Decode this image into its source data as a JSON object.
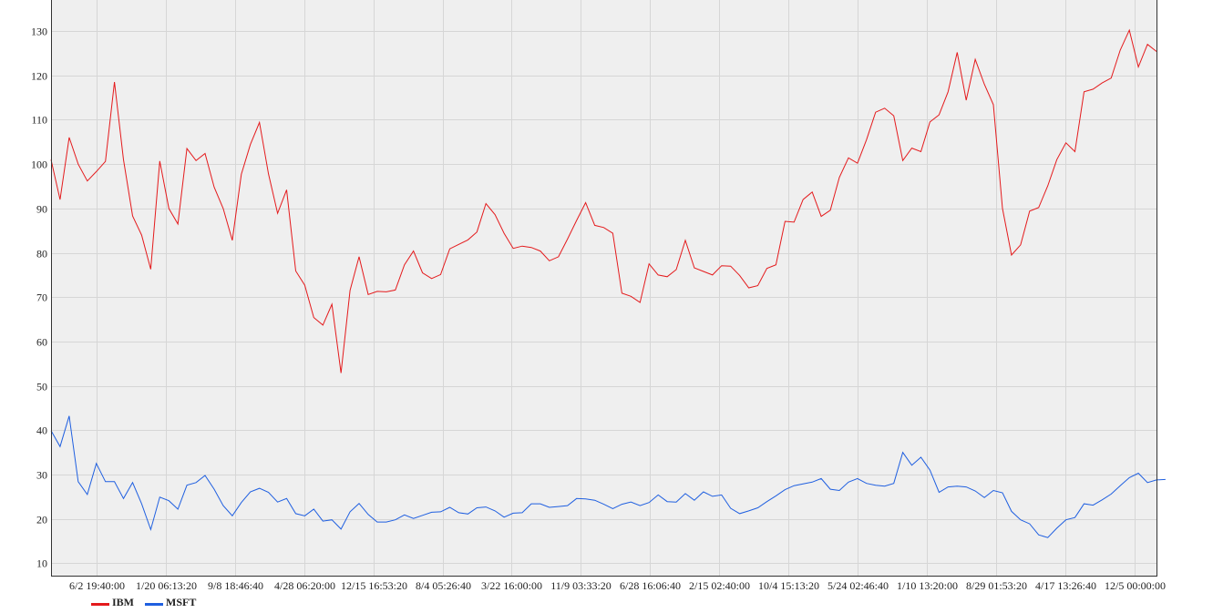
{
  "chart_data": {
    "type": "line",
    "title": "",
    "xlabel": "",
    "ylabel": "",
    "ylim": [
      7,
      137
    ],
    "grid": true,
    "legend_position": "bottom-left",
    "y_ticks": [
      10,
      20,
      30,
      40,
      50,
      60,
      70,
      80,
      90,
      100,
      110,
      120,
      130
    ],
    "x_tick_labels": [
      "6/2 19:40:00",
      "1/20 06:13:20",
      "9/8 18:46:40",
      "4/28 06:20:00",
      "12/15 16:53:20",
      "8/4 05:26:40",
      "3/22 16:00:00",
      "11/9 03:33:20",
      "6/28 16:06:40",
      "2/15 02:40:00",
      "10/4 15:13:20",
      "5/24 02:46:40",
      "1/10 13:20:00",
      "8/29 01:53:20",
      "4/17 13:26:40",
      "12/5 00:00:00"
    ],
    "series": [
      {
        "name": "IBM",
        "color": "#e41a1c",
        "values": [
          101,
          92,
          106,
          100,
          96.2,
          98.3,
          100.6,
          118.5,
          101,
          88.3,
          84,
          76.3,
          100.7,
          90,
          86.5,
          103.5,
          100.8,
          102.4,
          94.8,
          90,
          82.8,
          97.7,
          104.4,
          109.4,
          97.8,
          88.9,
          94.2,
          75.9,
          72.7,
          65.4,
          63.7,
          68.4,
          52.9,
          71.5,
          79.1,
          70.6,
          71.3,
          71.2,
          71.6,
          77.3,
          80.4,
          75.5,
          74.2,
          75.1,
          80.9,
          81.9,
          82.9,
          84.7,
          91.1,
          88.6,
          84.4,
          81,
          81.5,
          81.2,
          80.4,
          78.2,
          79.1,
          83.1,
          87.3,
          91.3,
          86.2,
          85.7,
          84.4,
          70.9,
          70.2,
          68.8,
          77.5,
          75,
          74.6,
          76.2,
          82.8,
          76.6,
          75.8,
          75,
          77.1,
          77,
          74.9,
          72.1,
          72.6,
          76.5,
          77.3,
          87.1,
          86.9,
          92,
          93.7,
          88.2,
          89.6,
          97,
          101.4,
          100.2,
          105.5,
          111.7,
          112.6,
          110.9,
          100.8,
          103.6,
          102.8,
          109.5,
          111.1,
          116.3,
          125.2,
          114.4,
          123.6,
          118,
          113.4,
          90,
          79.5,
          81.8,
          89.4,
          90.2,
          95.1,
          101,
          104.8,
          102.8,
          116.3,
          116.9,
          118.3,
          119.4,
          125.7,
          130.2,
          121.9,
          127,
          125.4
        ]
      },
      {
        "name": "MSFT",
        "color": "#1f5fe0",
        "values": [
          39.9,
          36.3,
          43.2,
          28.4,
          25.5,
          32.5,
          28.4,
          28.4,
          24.6,
          28.2,
          23.4,
          17.6,
          24.9,
          24.1,
          22.2,
          27.6,
          28.2,
          29.8,
          26.7,
          23,
          20.7,
          23.7,
          26.1,
          26.9,
          26,
          23.8,
          24.6,
          21.2,
          20.7,
          22.2,
          19.5,
          19.8,
          17.7,
          21.6,
          23.5,
          21,
          19.3,
          19.3,
          19.8,
          20.9,
          20.1,
          20.8,
          21.5,
          21.6,
          22.6,
          21.4,
          21.1,
          22.5,
          22.7,
          21.8,
          20.4,
          21.3,
          21.4,
          23.4,
          23.4,
          22.6,
          22.8,
          23,
          24.6,
          24.5,
          24.2,
          23.3,
          22.3,
          23.3,
          23.8,
          23,
          23.7,
          25.4,
          23.9,
          23.8,
          25.7,
          24.2,
          26.1,
          25.1,
          25.4,
          22.4,
          21.2,
          21.8,
          22.5,
          23.9,
          25.2,
          26.6,
          27.5,
          27.9,
          28.3,
          29.1,
          26.7,
          26.4,
          28.3,
          29.1,
          28,
          27.6,
          27.4,
          28,
          35,
          32.1,
          33.9,
          31,
          26,
          27.2,
          27.4,
          27.2,
          26.3,
          24.8,
          26.4,
          25.9,
          21.7,
          19.8,
          18.9,
          16.4,
          15.8,
          17.9,
          19.8,
          20.3,
          23.4,
          23.1,
          24.3,
          25.6,
          27.5,
          29.3,
          30.3,
          28.2,
          28.8,
          28.9
        ]
      }
    ]
  }
}
